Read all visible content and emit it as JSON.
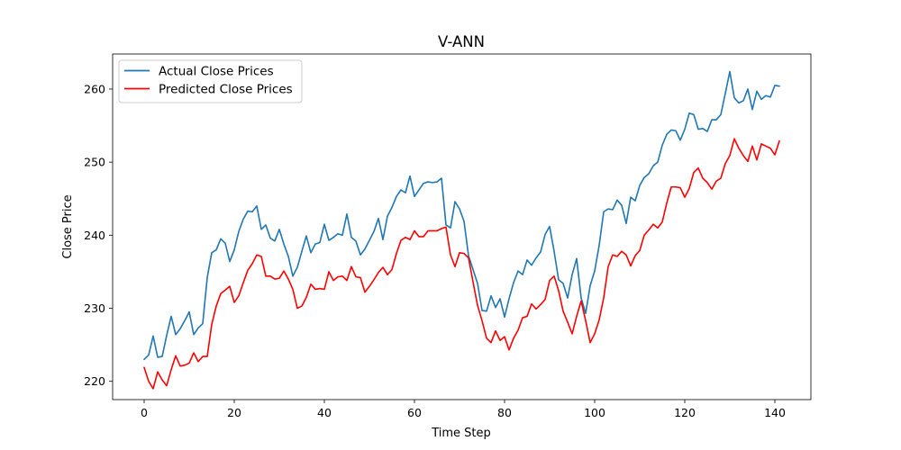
{
  "chart_data": {
    "type": "line",
    "title": "V-ANN",
    "xlabel": "Time Step",
    "ylabel": "Close Price",
    "xlim": [
      -7,
      148
    ],
    "ylim": [
      217.5,
      264.8
    ],
    "xticks": [
      0,
      20,
      40,
      60,
      80,
      100,
      120,
      140
    ],
    "yticks": [
      220,
      230,
      240,
      250,
      260
    ],
    "grid": false,
    "legend_position": "top-left",
    "series": [
      {
        "name": "Actual Close Prices",
        "color": "#1f77b4",
        "values": [
          223.0,
          223.6,
          226.2,
          223.3,
          223.4,
          226.3,
          228.9,
          226.4,
          227.2,
          228.3,
          229.5,
          226.4,
          227.3,
          227.9,
          234.2,
          237.6,
          238.0,
          239.5,
          238.9,
          236.4,
          238.0,
          240.5,
          242.2,
          243.3,
          243.2,
          244.0,
          240.8,
          241.4,
          239.6,
          239.2,
          240.8,
          238.8,
          237.1,
          234.4,
          235.6,
          237.8,
          239.9,
          237.6,
          238.8,
          239.0,
          241.5,
          239.3,
          239.7,
          240.2,
          240.0,
          242.9,
          239.7,
          239.2,
          237.3,
          238.1,
          239.3,
          240.5,
          242.3,
          239.4,
          242.6,
          243.8,
          245.3,
          246.2,
          245.8,
          248.1,
          245.3,
          246.2,
          247.1,
          247.3,
          247.2,
          247.3,
          247.8,
          241.4,
          241.0,
          244.6,
          243.6,
          241.9,
          237.2,
          235.3,
          233.4,
          229.7,
          229.6,
          231.7,
          230.1,
          231.3,
          228.8,
          231.3,
          233.5,
          235.1,
          234.6,
          236.6,
          235.9,
          236.9,
          237.7,
          240.1,
          241.2,
          237.8,
          233.9,
          233.4,
          231.4,
          234.6,
          236.8,
          231.4,
          229.3,
          233.1,
          235.1,
          238.6,
          243.2,
          243.6,
          243.5,
          244.8,
          244.1,
          241.6,
          245.2,
          244.7,
          246.8,
          247.9,
          248.4,
          249.5,
          250.0,
          252.3,
          253.8,
          254.4,
          254.3,
          253.0,
          254.5,
          256.7,
          256.5,
          254.5,
          254.6,
          254.2,
          255.8,
          255.8,
          256.5,
          259.4,
          262.4,
          258.8,
          258.1,
          258.4,
          260.0,
          257.2,
          259.7,
          258.6,
          259.1,
          258.9,
          260.5,
          260.4
        ]
      },
      {
        "name": "Predicted Close Prices",
        "color": "#ff0000",
        "values": [
          221.9,
          220.0,
          219.0,
          221.3,
          220.2,
          219.4,
          221.6,
          223.5,
          222.1,
          222.2,
          222.5,
          223.9,
          222.7,
          223.4,
          223.4,
          227.8,
          230.3,
          232.0,
          232.5,
          233.0,
          230.8,
          231.7,
          233.5,
          235.2,
          236.1,
          237.3,
          237.1,
          234.4,
          234.4,
          234.0,
          234.1,
          235.1,
          234.0,
          232.6,
          230.0,
          230.3,
          231.5,
          233.3,
          232.6,
          232.7,
          232.6,
          235.0,
          233.8,
          234.3,
          234.4,
          233.8,
          235.7,
          234.3,
          234.2,
          232.2,
          233.0,
          233.9,
          234.9,
          235.6,
          234.6,
          235.3,
          237.5,
          239.3,
          239.7,
          239.4,
          240.6,
          239.8,
          239.8,
          240.6,
          240.6,
          240.6,
          240.9,
          241.1,
          237.3,
          235.7,
          237.6,
          237.5,
          236.9,
          233.6,
          230.4,
          228.3,
          225.9,
          225.3,
          226.9,
          225.6,
          226.1,
          224.3,
          225.9,
          227.0,
          228.7,
          228.9,
          230.6,
          229.9,
          230.5,
          231.2,
          233.8,
          234.4,
          232.4,
          229.6,
          228.1,
          226.5,
          228.9,
          231.0,
          228.3,
          225.3,
          226.5,
          228.4,
          231.4,
          235.7,
          237.3,
          237.1,
          237.8,
          237.3,
          235.8,
          237.2,
          237.9,
          240.0,
          240.7,
          241.5,
          241.0,
          241.8,
          244.4,
          246.6,
          246.6,
          246.5,
          245.2,
          246.4,
          248.6,
          249.2,
          247.8,
          247.2,
          246.3,
          247.4,
          247.8,
          249.8,
          250.9,
          253.2,
          251.9,
          250.9,
          250.1,
          252.2,
          250.3,
          252.5,
          252.2,
          251.9,
          251.0,
          252.9
        ]
      }
    ]
  }
}
